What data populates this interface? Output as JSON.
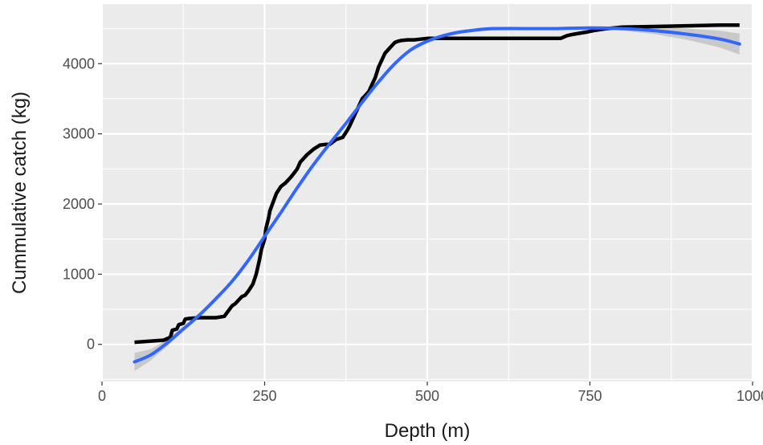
{
  "chart_data": {
    "type": "line",
    "title": "",
    "xlabel": "Depth (m)",
    "ylabel": "Cummulative catch (kg)",
    "xlim": [
      0,
      1000
    ],
    "ylim": [
      -530,
      4850
    ],
    "x_ticks": [
      0,
      250,
      500,
      750,
      1000
    ],
    "x_tick_labels": [
      "0",
      "250",
      "500",
      "750",
      "1000"
    ],
    "y_ticks": [
      0,
      1000,
      2000,
      3000,
      4000
    ],
    "y_tick_labels": [
      "0",
      "1000",
      "2000",
      "3000",
      "4000"
    ],
    "grid": true,
    "legend": "none",
    "colors": {
      "panel": "#ebebeb",
      "grid": "#ffffff",
      "observed": "#000000",
      "smooth": "#3366ff",
      "ribbon": "#bdbdbd"
    },
    "series": [
      {
        "role": "observed",
        "x": [
          50,
          95,
          105,
          108,
          115,
          118,
          125,
          128,
          135,
          150,
          175,
          188,
          192,
          200,
          205,
          215,
          220,
          225,
          232,
          237,
          242,
          245,
          250,
          252,
          256,
          258,
          262,
          268,
          275,
          282,
          290,
          296,
          300,
          305,
          310,
          315,
          325,
          335,
          345,
          350,
          360,
          370,
          377,
          380,
          385,
          390,
          395,
          400,
          405,
          410,
          415,
          420,
          425,
          430,
          435,
          440,
          445,
          450,
          455,
          460,
          470,
          480,
          490,
          500,
          550,
          600,
          650,
          705,
          715,
          725,
          745,
          755,
          775,
          800,
          850,
          900,
          950,
          980
        ],
        "y": [
          30,
          60,
          100,
          200,
          220,
          280,
          300,
          360,
          370,
          380,
          380,
          400,
          450,
          550,
          580,
          680,
          700,
          760,
          860,
          1000,
          1200,
          1350,
          1500,
          1650,
          1800,
          1900,
          2000,
          2150,
          2250,
          2300,
          2380,
          2450,
          2500,
          2600,
          2650,
          2700,
          2780,
          2840,
          2850,
          2850,
          2920,
          2950,
          3050,
          3100,
          3200,
          3300,
          3400,
          3500,
          3550,
          3600,
          3700,
          3800,
          3950,
          4050,
          4150,
          4200,
          4250,
          4300,
          4320,
          4330,
          4340,
          4340,
          4350,
          4360,
          4360,
          4360,
          4360,
          4360,
          4400,
          4420,
          4450,
          4470,
          4500,
          4520,
          4530,
          4540,
          4550,
          4550
        ]
      },
      {
        "role": "smooth",
        "x": [
          50,
          75,
          100,
          125,
          150,
          175,
          200,
          225,
          250,
          275,
          300,
          325,
          350,
          375,
          400,
          425,
          450,
          475,
          500,
          525,
          550,
          575,
          600,
          650,
          700,
          750,
          800,
          850,
          900,
          950,
          980
        ],
        "y": [
          -250,
          -150,
          20,
          220,
          420,
          650,
          900,
          1200,
          1540,
          1880,
          2230,
          2560,
          2860,
          3150,
          3450,
          3740,
          4000,
          4200,
          4320,
          4400,
          4450,
          4480,
          4500,
          4500,
          4500,
          4510,
          4500,
          4470,
          4420,
          4350,
          4280
        ],
        "lower": [
          -380,
          -230,
          -30,
          180,
          390,
          620,
          875,
          1175,
          1515,
          1855,
          2205,
          2535,
          2835,
          3125,
          3425,
          3715,
          3975,
          4175,
          4295,
          4375,
          4425,
          4455,
          4475,
          4478,
          4480,
          4488,
          4470,
          4420,
          4340,
          4230,
          4130
        ],
        "upper": [
          -120,
          -70,
          70,
          260,
          450,
          680,
          925,
          1225,
          1565,
          1905,
          2255,
          2585,
          2885,
          3175,
          3475,
          3765,
          4025,
          4225,
          4345,
          4425,
          4475,
          4505,
          4525,
          4522,
          4520,
          4532,
          4530,
          4520,
          4500,
          4470,
          4430
        ]
      }
    ]
  }
}
